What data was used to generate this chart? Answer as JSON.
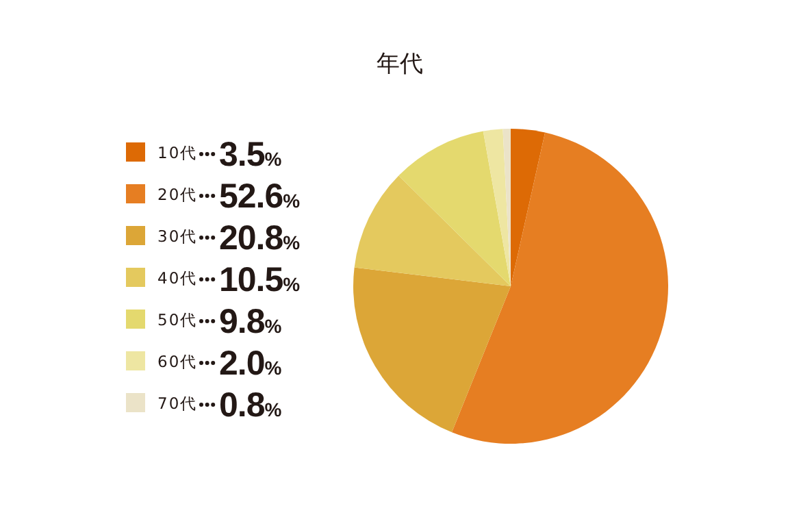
{
  "chart_data": {
    "type": "pie",
    "title": "年代",
    "categories": [
      "10代",
      "20代",
      "30代",
      "40代",
      "50代",
      "60代",
      "70代"
    ],
    "values": [
      3.5,
      52.6,
      20.8,
      10.5,
      9.8,
      2.0,
      0.8
    ],
    "value_labels": [
      "3.5%",
      "52.6%",
      "20.8%",
      "10.5%",
      "9.8%",
      "2.0%",
      "0.8%"
    ],
    "colors": [
      "#dd6a05",
      "#e67e22",
      "#dca637",
      "#e4c95e",
      "#e4d96e",
      "#eee6a2",
      "#ebe3c8"
    ],
    "legend": "left"
  }
}
